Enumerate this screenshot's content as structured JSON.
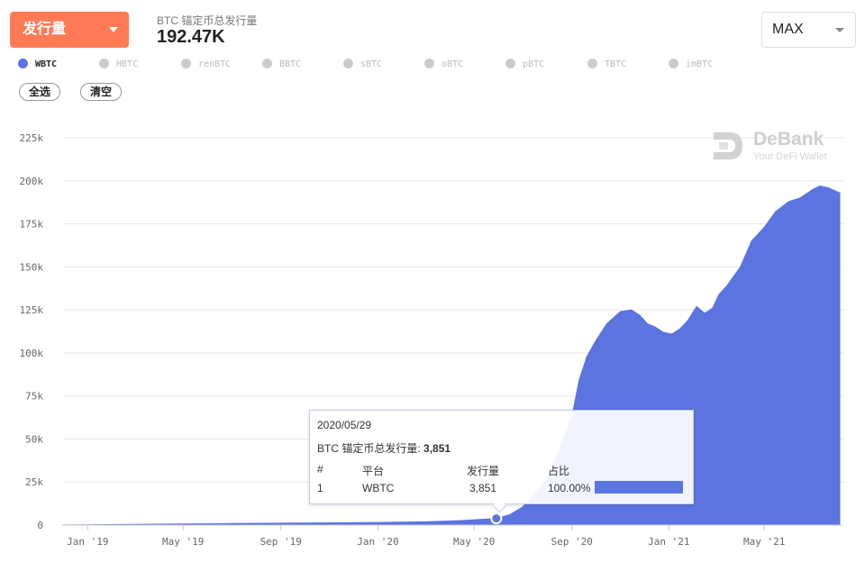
{
  "header": {
    "metric_label": "发行量",
    "stat_label": "BTC 锚定币总发行量",
    "stat_value": "192.47K",
    "range_label": "MAX"
  },
  "legend": {
    "items": [
      {
        "label": "WBTC",
        "active": true
      },
      {
        "label": "HBTC",
        "active": false
      },
      {
        "label": "renBTC",
        "active": false
      },
      {
        "label": "BBTC",
        "active": false
      },
      {
        "label": "sBTC",
        "active": false
      },
      {
        "label": "oBTC",
        "active": false
      },
      {
        "label": "pBTC",
        "active": false
      },
      {
        "label": "TBTC",
        "active": false
      },
      {
        "label": "imBTC",
        "active": false
      }
    ],
    "select_all": "全选",
    "clear": "清空"
  },
  "watermark": {
    "title": "DeBank",
    "subtitle": "Your DeFi Wallet"
  },
  "tooltip": {
    "date": "2020/05/29",
    "total_label": "BTC 锚定币总发行量:",
    "total_value": "3,851",
    "headers": {
      "rank": "#",
      "platform": "平台",
      "amount": "发行量",
      "share": "占比"
    },
    "row": {
      "rank": "1",
      "platform": "WBTC",
      "amount": "3,851",
      "share": "100.00%",
      "share_fraction": 1.0
    }
  },
  "colors": {
    "series": "#5c74e0",
    "accent": "#ff7a55"
  },
  "chart_data": {
    "type": "area",
    "x_ticks": [
      "Jan '19",
      "May '19",
      "Sep '19",
      "Jan '20",
      "May '20",
      "Sep '20",
      "Jan '21",
      "May '21"
    ],
    "y_ticks": [
      "225k",
      "200k",
      "175k",
      "150k",
      "125k",
      "100k",
      "75k",
      "50k",
      "25k",
      "0"
    ],
    "ylim": [
      0,
      225000
    ],
    "xlim": [
      "2018-12-01",
      "2021-08-04"
    ],
    "grid": true,
    "series": [
      {
        "name": "WBTC",
        "x": [
          "2018-12-01",
          "2019-01-01",
          "2019-03-01",
          "2019-05-01",
          "2019-07-01",
          "2019-09-01",
          "2019-11-01",
          "2020-01-01",
          "2020-03-01",
          "2020-04-15",
          "2020-05-29",
          "2020-06-15",
          "2020-07-01",
          "2020-07-15",
          "2020-08-01",
          "2020-08-15",
          "2020-09-01",
          "2020-09-10",
          "2020-09-20",
          "2020-10-01",
          "2020-10-15",
          "2020-11-01",
          "2020-11-15",
          "2020-11-25",
          "2020-12-05",
          "2020-12-15",
          "2020-12-25",
          "2021-01-05",
          "2021-01-15",
          "2021-01-25",
          "2021-02-05",
          "2021-02-15",
          "2021-02-25",
          "2021-03-05",
          "2021-03-15",
          "2021-04-01",
          "2021-04-15",
          "2021-05-01",
          "2021-05-15",
          "2021-06-01",
          "2021-06-15",
          "2021-07-01",
          "2021-07-10",
          "2021-07-20",
          "2021-08-04"
        ],
        "y": [
          50,
          150,
          400,
          700,
          900,
          1100,
          1300,
          1500,
          1900,
          2600,
          3851,
          6000,
          10500,
          17000,
          27000,
          42000,
          63000,
          84000,
          98000,
          107000,
          117000,
          124000,
          125000,
          122000,
          117000,
          115000,
          112000,
          111000,
          114000,
          119000,
          127000,
          123000,
          126000,
          134000,
          139000,
          150000,
          165000,
          173000,
          182000,
          188000,
          190000,
          195000,
          197000,
          196000,
          193000
        ]
      }
    ]
  }
}
